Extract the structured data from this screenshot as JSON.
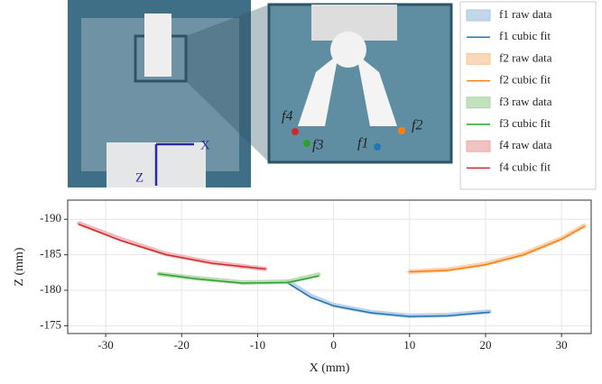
{
  "figure": {
    "labels": [
      "f4",
      "f3",
      "f1",
      "f2",
      "X",
      "Z"
    ]
  },
  "chart_data": {
    "type": "line",
    "xlabel": "X (mm)",
    "ylabel": "Z (mm)",
    "xlim": [
      -35,
      33.9
    ],
    "ylim": [
      -192.7,
      -173.9
    ],
    "invert_y": true,
    "grid": true,
    "xticks": [
      -30,
      -20,
      -10,
      0,
      10,
      20,
      30
    ],
    "yticks": [
      -190,
      -185,
      -180,
      -175
    ],
    "series": [
      {
        "name": "f1 raw data",
        "style": "band",
        "color": "#a9c6e3",
        "x": [
          -6,
          -3,
          0,
          5,
          10,
          15,
          20.5
        ],
        "values": [
          -181.2,
          -179.2,
          -177.9,
          -176.9,
          -176.4,
          -176.5,
          -177
        ]
      },
      {
        "name": "f1 cubic fit",
        "style": "line",
        "color": "#1f77b4",
        "x": [
          -6,
          -3,
          0,
          5,
          10,
          15,
          20.5
        ],
        "values": [
          -181,
          -179,
          -177.8,
          -176.8,
          -176.3,
          -176.4,
          -176.9
        ]
      },
      {
        "name": "f2 raw data",
        "style": "band",
        "color": "#f7c79a",
        "x": [
          10,
          15,
          20,
          25,
          30,
          33
        ],
        "values": [
          -182.6,
          -182.9,
          -183.7,
          -185.1,
          -187.3,
          -189.1
        ]
      },
      {
        "name": "f2 cubic fit",
        "style": "line",
        "color": "#ff7f0e",
        "x": [
          10,
          15,
          20,
          25,
          30,
          33
        ],
        "values": [
          -182.6,
          -182.8,
          -183.6,
          -185,
          -187.2,
          -189
        ]
      },
      {
        "name": "f3 raw data",
        "style": "band",
        "color": "#a8d5a3",
        "x": [
          -23,
          -18,
          -12,
          -6,
          -2
        ],
        "values": [
          -182.3,
          -181.7,
          -181.1,
          -181.2,
          -182.2
        ]
      },
      {
        "name": "f3 cubic fit",
        "style": "line",
        "color": "#2ca02c",
        "x": [
          -23,
          -18,
          -12,
          -6,
          -2
        ],
        "values": [
          -182.3,
          -181.6,
          -181,
          -181.1,
          -182
        ]
      },
      {
        "name": "f4 raw data",
        "style": "band",
        "color": "#eaa9aa",
        "x": [
          -33.5,
          -28,
          -22,
          -16,
          -9
        ],
        "values": [
          -189.4,
          -187.2,
          -185.1,
          -183.9,
          -183
        ]
      },
      {
        "name": "f4 cubic fit",
        "style": "line",
        "color": "#d62728",
        "x": [
          -33.5,
          -28,
          -22,
          -16,
          -9
        ],
        "values": [
          -189.3,
          -187,
          -185,
          -183.8,
          -183
        ]
      }
    ]
  }
}
